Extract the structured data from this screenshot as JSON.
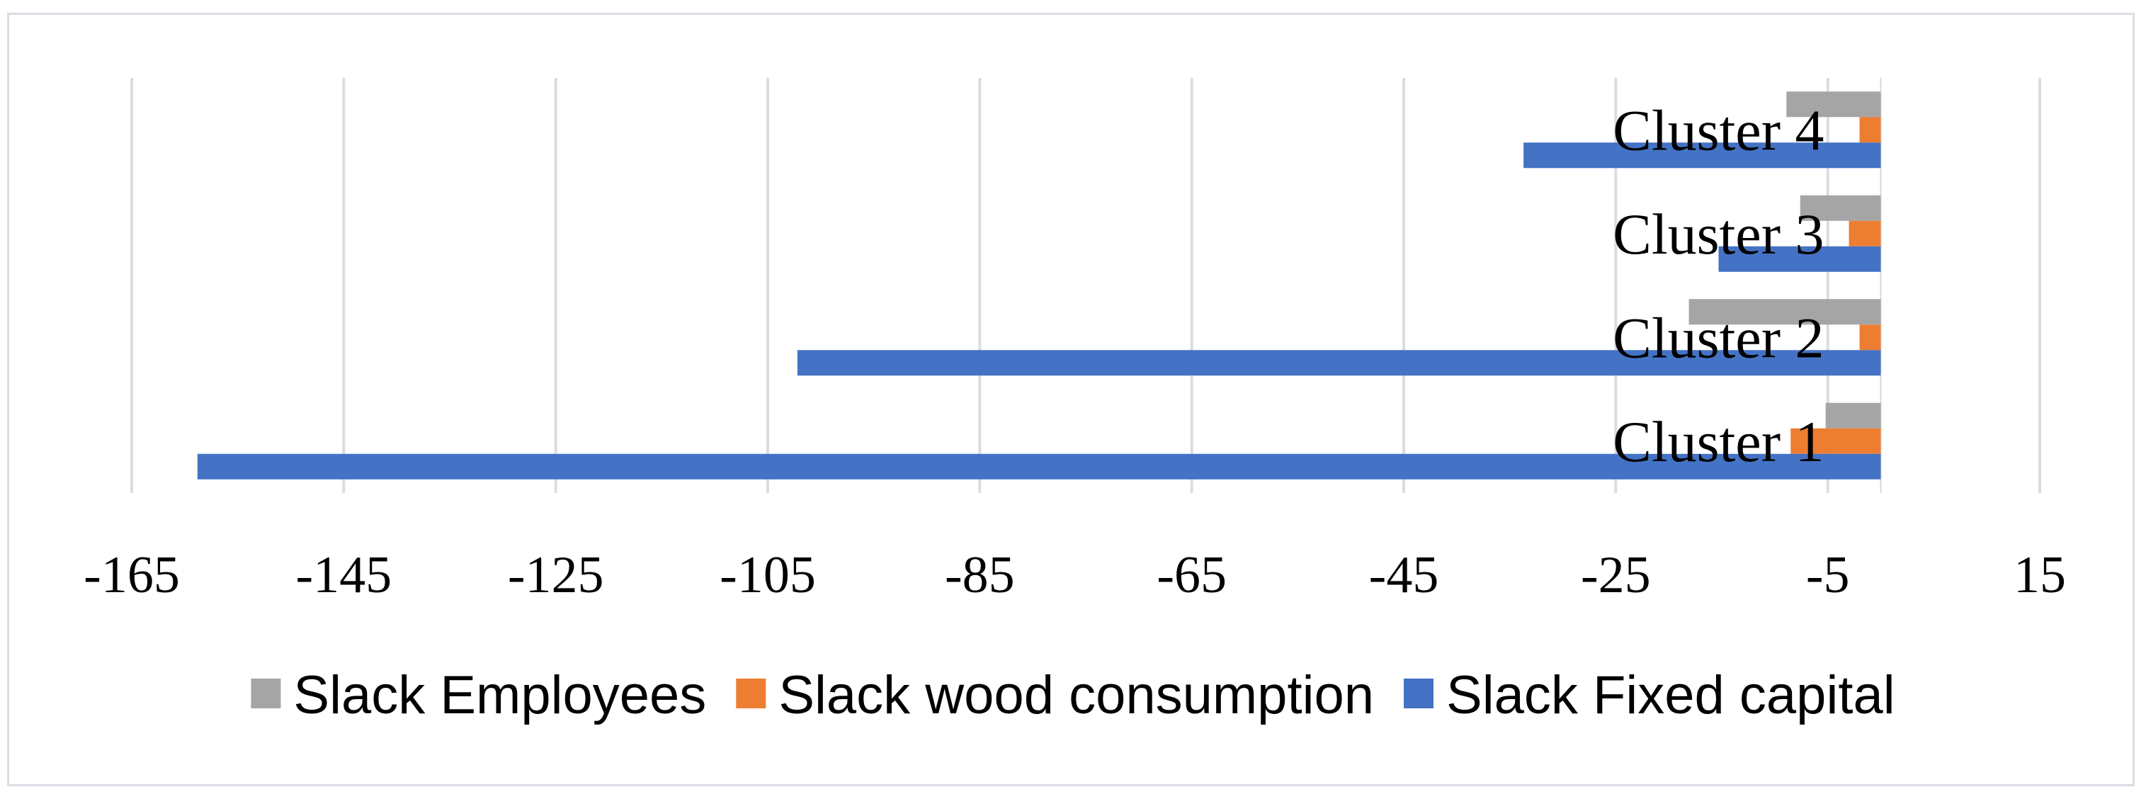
{
  "chart_data": {
    "type": "bar",
    "orientation": "horizontal",
    "categories": [
      "Cluster 1",
      "Cluster 2",
      "Cluster 3",
      "Cluster 4"
    ],
    "series": [
      {
        "name": "Slack Employees",
        "color": "#a5a5a5",
        "values": [
          -5.2,
          -18.1,
          -7.6,
          -8.9
        ]
      },
      {
        "name": "Slack wood consumption",
        "color": "#ed7d31",
        "values": [
          -8.5,
          -2.0,
          -3.0,
          -2.0
        ]
      },
      {
        "name": "Slack Fixed capital",
        "color": "#4472c4",
        "values": [
          -158.8,
          -102.2,
          -15.3,
          -33.7
        ]
      }
    ],
    "xticks": [
      "-165",
      "-145",
      "-125",
      "-105",
      "-85",
      "-65",
      "-45",
      "-25",
      "-5",
      "15"
    ],
    "xlim": [
      -165,
      15
    ],
    "grid": true,
    "legend_position": "bottom"
  }
}
